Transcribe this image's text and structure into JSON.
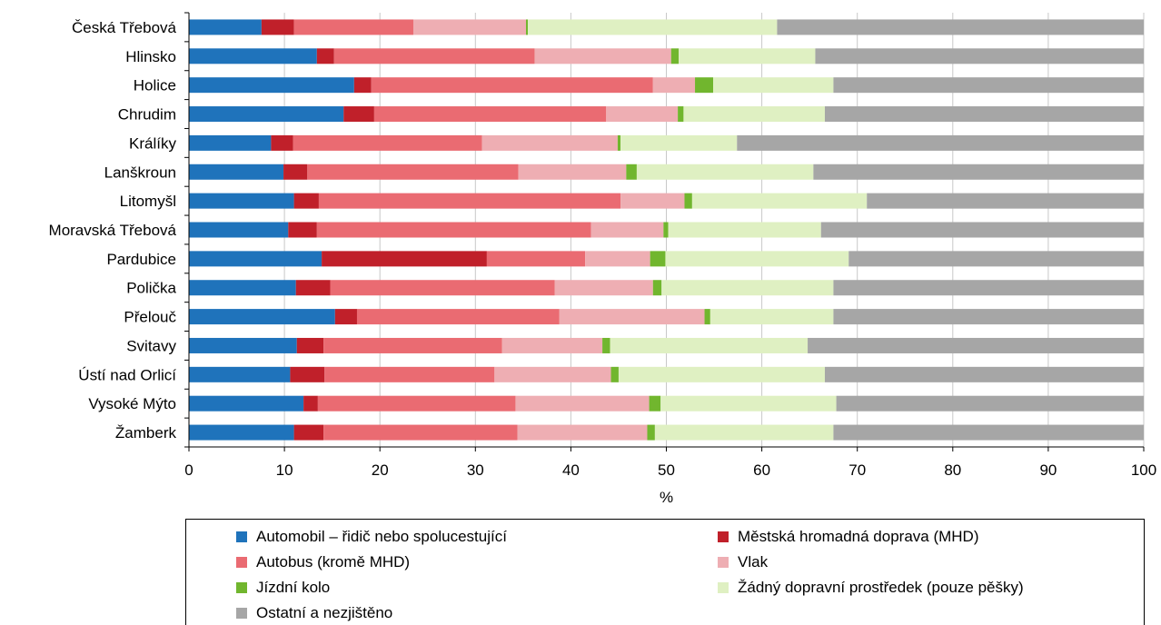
{
  "chart_data": {
    "type": "bar",
    "orientation": "horizontal",
    "stacked": true,
    "xlabel": "%",
    "xlim": [
      0,
      100
    ],
    "xticks": [
      "0",
      "10",
      "20",
      "30",
      "40",
      "50",
      "60",
      "70",
      "80",
      "90",
      "100"
    ],
    "grid": "vertical",
    "legend_position": "bottom",
    "categories": [
      "Česká Třebová",
      "Hlinsko",
      "Holice",
      "Chrudim",
      "Králíky",
      "Lanškroun",
      "Litomyšl",
      "Moravská Třebová",
      "Pardubice",
      "Polička",
      "Přelouč",
      "Svitavy",
      "Ústí nad Orlicí",
      "Vysoké Mýto",
      "Žamberk"
    ],
    "series": [
      {
        "name": "Automobil – řidič nebo spolucestující",
        "color": "#1f73bb",
        "values": [
          7.6,
          13.4,
          17.3,
          16.2,
          8.6,
          9.9,
          11.0,
          10.4,
          13.9,
          11.2,
          15.3,
          11.3,
          10.6,
          12.0,
          11.0
        ]
      },
      {
        "name": "Městská hromadná doprava (MHD)",
        "color": "#c0202a",
        "values": [
          3.4,
          1.8,
          1.8,
          3.2,
          2.3,
          2.5,
          2.6,
          3.0,
          17.3,
          3.6,
          2.3,
          2.8,
          3.6,
          1.5,
          3.1
        ]
      },
      {
        "name": "Autobus (kromě MHD)",
        "color": "#ea6b72",
        "values": [
          12.5,
          21.0,
          29.5,
          24.3,
          19.8,
          22.1,
          31.6,
          28.7,
          10.3,
          23.5,
          21.2,
          18.7,
          17.8,
          20.7,
          20.3
        ]
      },
      {
        "name": "Vlak",
        "color": "#eeaeb3",
        "values": [
          11.8,
          14.3,
          4.4,
          7.5,
          14.2,
          11.3,
          6.7,
          7.6,
          6.8,
          10.3,
          15.2,
          10.5,
          12.2,
          14.0,
          13.6
        ]
      },
      {
        "name": "Jízdní kolo",
        "color": "#71b62e",
        "values": [
          0.2,
          0.8,
          1.9,
          0.6,
          0.3,
          1.1,
          0.8,
          0.5,
          1.6,
          0.9,
          0.6,
          0.8,
          0.8,
          1.2,
          0.8
        ]
      },
      {
        "name": "Žádný dopravní prostředek (pouze pěšky)",
        "color": "#dff0c2",
        "values": [
          26.1,
          14.3,
          12.6,
          14.8,
          12.2,
          18.5,
          18.3,
          16.0,
          19.2,
          18.0,
          12.9,
          20.7,
          21.6,
          18.4,
          18.7
        ]
      },
      {
        "name": "Ostatní a nezjištěno",
        "color": "#a6a6a6",
        "values": [
          38.4,
          34.4,
          32.5,
          33.4,
          42.6,
          34.6,
          29.0,
          33.8,
          30.9,
          32.5,
          32.5,
          35.2,
          33.4,
          32.2,
          32.5
        ]
      }
    ]
  }
}
